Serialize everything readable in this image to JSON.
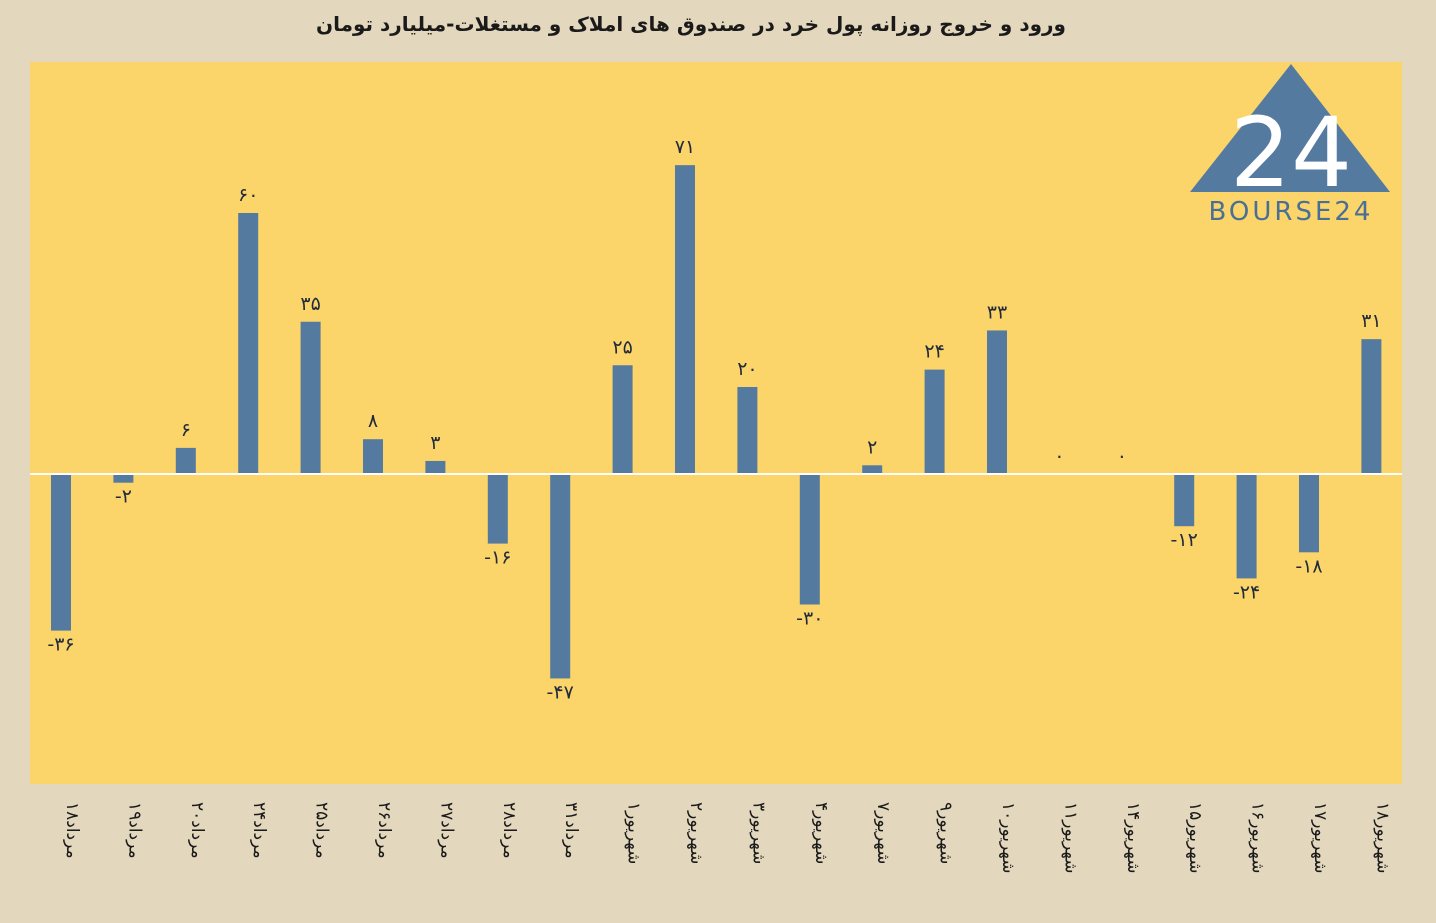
{
  "chart_data": {
    "type": "bar",
    "title": "ورود و خروج روزانه پول خرد در صندوق های املاک و مستغلات-میلیارد تومان",
    "categories": [
      "۱۸مرداد",
      "۱۹مرداد",
      "۲۰مرداد",
      "۲۴مرداد",
      "۲۵مرداد",
      "۲۶مرداد",
      "۲۷مرداد",
      "۲۸مرداد",
      "۳۱مرداد",
      "۱شهریور",
      "۲شهریور",
      "۳شهریور",
      "۴شهریور",
      "۷شهریور",
      "۹شهریور",
      "۱۰شهریور",
      "۱۱شهریور",
      "۱۴شهریور",
      "۱۵شهریور",
      "۱۶شهریور",
      "۱۷شهریور",
      "۱۸شهریور"
    ],
    "values": [
      -36,
      -2,
      6,
      60,
      35,
      8,
      3,
      -16,
      -47,
      25,
      71,
      20,
      -30,
      2,
      24,
      33,
      0,
      0,
      -12,
      -24,
      -18,
      31
    ],
    "data_labels": [
      "-۳۶",
      "-۲",
      "۶",
      "۶۰",
      "۳۵",
      "۸",
      "۳",
      "-۱۶",
      "-۴۷",
      "۲۵",
      "۷۱",
      "۲۰",
      "-۳۰",
      "۲",
      "۲۴",
      "۳۳",
      "۰",
      "۰",
      "-۱۲",
      "-۲۴",
      "-۱۸",
      "۳۱"
    ],
    "ylim": [
      -60,
      80
    ],
    "grid": false,
    "colors": {
      "bar": "#557aa0",
      "plot_bg": "#fbd46a",
      "page_bg": "#e3d7bd",
      "zero_line": "#ffffff"
    }
  },
  "logo": {
    "text": "BOURSE24",
    "mark": "24",
    "color": "#4a6f95"
  }
}
